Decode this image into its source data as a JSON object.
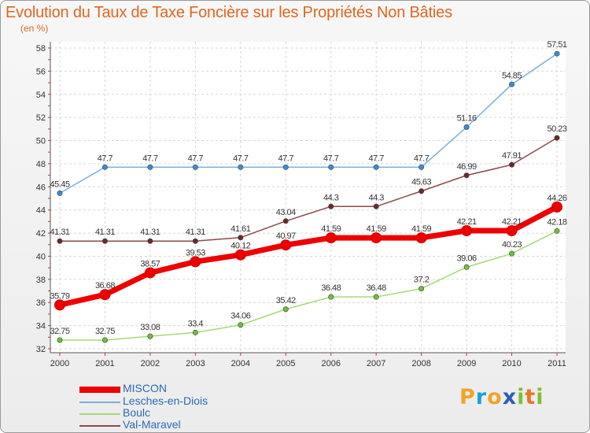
{
  "title": "Evolution du Taux de Taxe Foncière sur les Propriétés Non Bâties",
  "unit_label": "(en %)",
  "logo": {
    "letters": [
      "P",
      "r",
      "o",
      "x",
      "i",
      "t",
      "i"
    ],
    "colors": [
      "#f0a42a",
      "#1aa0d8",
      "#f0a42a",
      "#2a5fb5",
      "#7cbf3a",
      "#e8762b",
      "#7cbf3a"
    ]
  },
  "chart_data": {
    "type": "line",
    "x": [
      "2000",
      "2001",
      "2002",
      "2003",
      "2004",
      "2005",
      "2006",
      "2007",
      "2008",
      "2009",
      "2010",
      "2011"
    ],
    "ylim": [
      32,
      58
    ],
    "yticks": [
      32,
      34,
      36,
      38,
      40,
      42,
      44,
      46,
      48,
      50,
      52,
      54,
      56,
      58
    ],
    "grid": true,
    "legend_position": "bottom-left",
    "series": [
      {
        "name": "Lesches-en-Diois",
        "color": "#7aaedc",
        "point_color": "#3d8bd1",
        "values": [
          45.45,
          47.7,
          47.7,
          47.7,
          47.7,
          47.7,
          47.7,
          47.7,
          47.7,
          51.16,
          54.85,
          57.51
        ],
        "labels": [
          "45.45",
          "47.7",
          "47.7",
          "47.7",
          "47.7",
          "47.7",
          "47.7",
          "47.7",
          "47.7",
          "51.16",
          "54.85",
          "57.51"
        ]
      },
      {
        "name": "Val-Maravel",
        "color": "#8a4a4a",
        "point_color": "#6a2a2a",
        "values": [
          41.31,
          41.31,
          41.31,
          41.31,
          41.61,
          43.04,
          44.3,
          44.3,
          45.63,
          46.99,
          47.91,
          50.23
        ],
        "labels": [
          "41.31",
          "41.31",
          "41.31",
          "41.31",
          "41.61",
          "43.04",
          "44.3",
          "44.3",
          "45.63",
          "46.99",
          "47.91",
          "50.23"
        ]
      },
      {
        "name": "Boulc",
        "color": "#a6d97a",
        "point_color": "#6fbf3b",
        "values": [
          32.75,
          32.75,
          33.08,
          33.4,
          34.06,
          35.42,
          36.48,
          36.48,
          37.2,
          39.06,
          40.23,
          42.18
        ],
        "labels": [
          "32.75",
          "32.75",
          "33.08",
          "33.4",
          "34.06",
          "35.42",
          "36.48",
          "36.48",
          "37.2",
          "39.06",
          "40.23",
          "42.18"
        ]
      },
      {
        "name": "MISCON",
        "color": "#ee0000",
        "point_color": "#ee0000",
        "values": [
          35.79,
          36.68,
          38.57,
          39.53,
          40.12,
          40.97,
          41.59,
          41.59,
          41.59,
          42.21,
          42.21,
          44.26
        ],
        "labels": [
          "35.79",
          "36.68",
          "38.57",
          "39.53",
          "40.12",
          "40.97",
          "41.59",
          "41.59",
          "41.59",
          "42.21",
          "42.21",
          "44.26"
        ]
      }
    ],
    "legend": [
      "MISCON",
      "Lesches-en-Diois",
      "Boulc",
      "Val-Maravel"
    ]
  }
}
